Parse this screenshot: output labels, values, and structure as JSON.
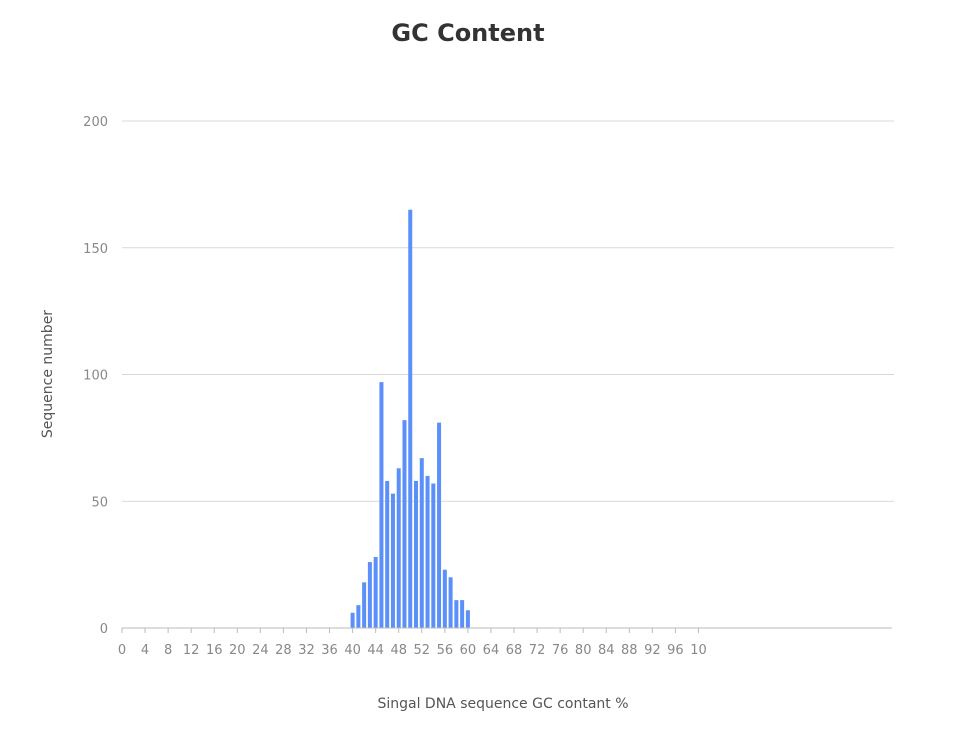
{
  "chart_data": {
    "type": "bar",
    "title": "GC Content",
    "xlabel": "Singal DNA sequence GC contant %",
    "ylabel": "Sequence number",
    "xlim": [
      0,
      100
    ],
    "ylim": [
      0,
      200
    ],
    "x_ticks": [
      "0",
      "4",
      "8",
      "12",
      "16",
      "20",
      "24",
      "28",
      "32",
      "36",
      "40",
      "44",
      "48",
      "52",
      "56",
      "60",
      "64",
      "68",
      "72",
      "76",
      "80",
      "84",
      "88",
      "92",
      "96",
      "10"
    ],
    "y_ticks": [
      "0",
      "50",
      "100",
      "150",
      "200"
    ],
    "grid": "horizontal",
    "legend": "none",
    "colors": {
      "bar": "#5b8ff9",
      "grid": "#d9d9d9",
      "axis": "#bbbbbb"
    },
    "x": [
      40,
      41,
      42,
      43,
      44,
      45,
      46,
      47,
      48,
      49,
      50,
      51,
      52,
      53,
      54,
      55,
      56,
      57,
      58,
      59,
      60
    ],
    "values": [
      6,
      9,
      18,
      26,
      28,
      97,
      58,
      53,
      63,
      82,
      165,
      58,
      67,
      60,
      57,
      81,
      23,
      20,
      11,
      11,
      7
    ]
  }
}
